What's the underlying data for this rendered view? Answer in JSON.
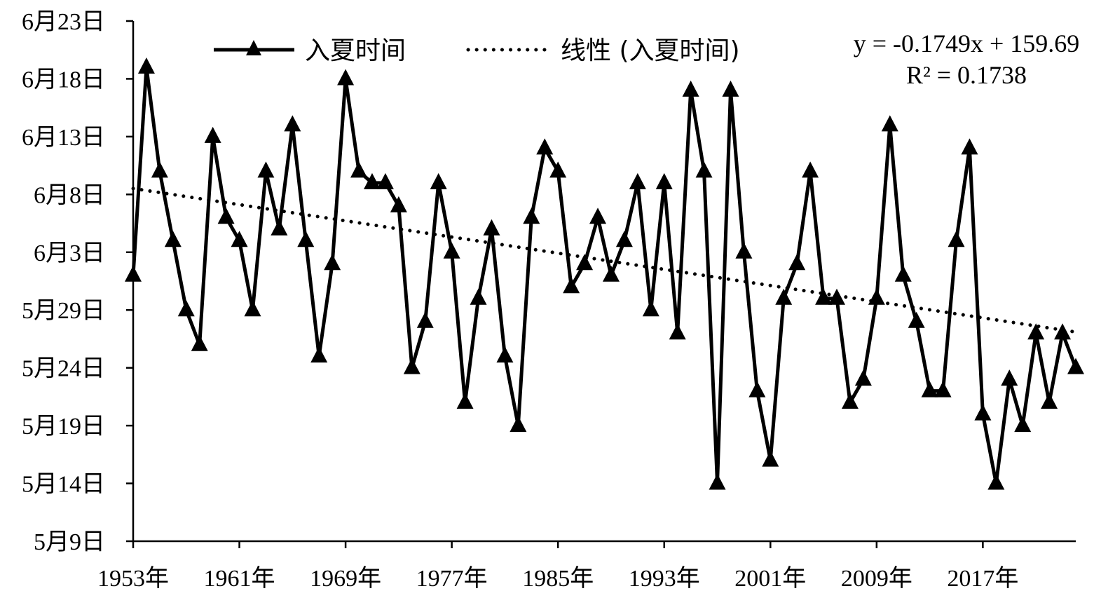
{
  "chart_data": {
    "type": "line",
    "title": "",
    "xlabel": "",
    "ylabel": "",
    "x": [
      1953,
      1954,
      1955,
      1956,
      1957,
      1958,
      1959,
      1960,
      1961,
      1962,
      1963,
      1964,
      1965,
      1966,
      1967,
      1968,
      1969,
      1970,
      1971,
      1972,
      1973,
      1974,
      1975,
      1976,
      1977,
      1978,
      1979,
      1980,
      1981,
      1982,
      1983,
      1984,
      1985,
      1986,
      1987,
      1988,
      1989,
      1990,
      1991,
      1992,
      1993,
      1994,
      1995,
      1996,
      1997,
      1998,
      1999,
      2000,
      2001,
      2002,
      2003,
      2004,
      2005,
      2006,
      2007,
      2008,
      2009,
      2010,
      2011,
      2012,
      2013,
      2014,
      2015,
      2016,
      2017,
      2018,
      2019,
      2020,
      2021,
      2022,
      2023,
      2024
    ],
    "x_tick_labels": [
      "1953年",
      "1961年",
      "1969年",
      "1977年",
      "1985年",
      "1993年",
      "2001年",
      "2009年",
      "2017年"
    ],
    "x_tick_years": [
      1953,
      1961,
      1969,
      1977,
      1985,
      1993,
      2001,
      2009,
      2017
    ],
    "xlim": [
      1953,
      2024
    ],
    "y_tick_labels": [
      "5月9日",
      "5月14日",
      "5月19日",
      "5月24日",
      "5月29日",
      "6月3日",
      "6月8日",
      "6月13日",
      "6月18日",
      "6月23日"
    ],
    "y_tick_values": [
      129,
      134,
      139,
      144,
      149,
      154,
      159,
      164,
      169,
      174
    ],
    "ylim": [
      129,
      174
    ],
    "series": [
      {
        "name": "入夏时间",
        "color": "#000000",
        "marker": "triangle",
        "values": [
          152,
          170,
          161,
          155,
          149,
          146,
          164,
          157,
          155,
          149,
          161,
          156,
          165,
          155,
          145,
          153,
          169,
          161,
          160,
          160,
          158,
          144,
          148,
          160,
          154,
          141,
          150,
          156,
          145,
          139,
          157,
          163,
          161,
          151,
          153,
          157,
          152,
          155,
          160,
          149,
          160,
          147,
          168,
          161,
          134,
          168,
          154,
          142,
          136,
          150,
          153,
          161,
          150,
          150,
          141,
          143,
          150,
          165,
          152,
          148,
          142,
          142,
          155,
          163,
          140,
          134,
          143,
          139,
          147,
          141,
          147,
          144
        ]
      }
    ],
    "trendline": {
      "name": "线性 (入夏时间)",
      "type": "linear",
      "style": "dotted",
      "slope": -0.1749,
      "intercept": 159.69,
      "equation": "y = -0.1749x + 159.69",
      "r_squared": "R² = 0.1738"
    },
    "legend": {
      "position": "top",
      "entries": [
        "入夏时间",
        "线性 (入夏时间)"
      ]
    },
    "grid": false
  }
}
